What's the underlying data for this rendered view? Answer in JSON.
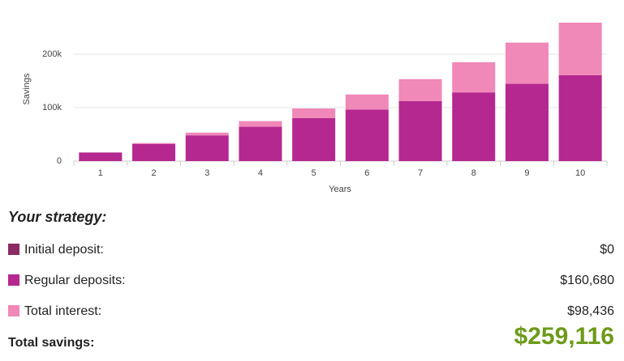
{
  "chart_data": {
    "type": "stacked-bar",
    "x_label": "Years",
    "y_label": "Savings",
    "categories": [
      "1",
      "2",
      "3",
      "4",
      "5",
      "6",
      "7",
      "8",
      "9",
      "10"
    ],
    "series": [
      {
        "color": "#b5288f",
        "values": [
          16068,
          32136,
          48204,
          64272,
          80340,
          96408,
          112476,
          128544,
          144612,
          160680
        ]
      },
      {
        "color": "#f088b8",
        "values": [
          0,
          1639,
          5084,
          10519,
          18148,
          28194,
          40903,
          56548,
          77167,
          98436
        ]
      }
    ],
    "ylim": [
      0,
      300000
    ],
    "yticks": [
      0,
      {
        "value": 100000,
        "label": "100k"
      },
      {
        "value": 200000,
        "label": "200k"
      }
    ],
    "grid": true
  },
  "summary": {
    "title": "Your strategy:",
    "items": [
      {
        "name": "Initial deposit:",
        "color": "#8b2a63",
        "value": "$0"
      },
      {
        "name": "Regular deposits:",
        "color": "#b5288f",
        "value": "$160,680"
      },
      {
        "name": "Total interest:",
        "color": "#f088b8",
        "value": "$98,436"
      }
    ],
    "total_label": "Total savings:",
    "total_value": "$259,116"
  }
}
